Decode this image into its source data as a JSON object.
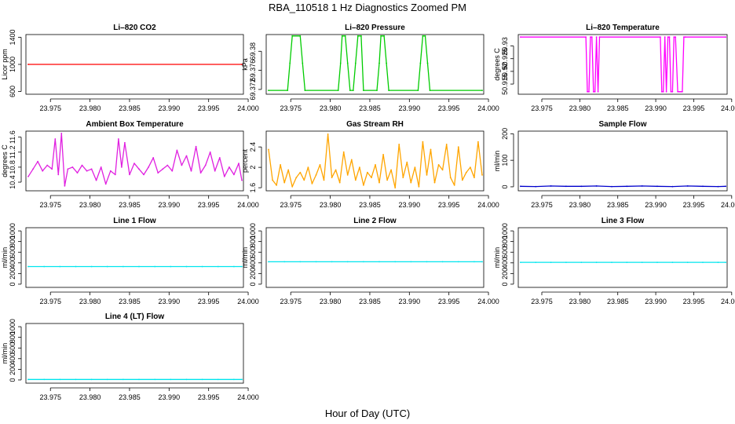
{
  "figure": {
    "title": "RBA_110518  1 Hz Diagnostics Zoomed PM",
    "xlabel": "Hour of Day (UTC)"
  },
  "chart_data": [
    {
      "id": "co2",
      "type": "line",
      "title": "Li–820 CO2",
      "ylabel": "Licor ppm",
      "color": "#ff0000",
      "xlim": [
        23.9719,
        23.9994
      ],
      "ylim": [
        560,
        1440
      ],
      "yticks": [
        600,
        1000,
        1400
      ],
      "xticks": [
        23.975,
        23.98,
        23.985,
        23.99,
        23.995,
        24.0
      ],
      "xtick_labels": [
        "23.975",
        "23.980",
        "23.985",
        "23.990",
        "23.995",
        "24.000"
      ],
      "x": [
        23.9722,
        23.9992
      ],
      "y": [
        1000,
        1000
      ]
    },
    {
      "id": "pressure",
      "type": "line",
      "title": "Li–820 Pressure",
      "ylabel": "kPa",
      "color": "#00cc00",
      "xlim": [
        23.9719,
        23.9994
      ],
      "ylim": [
        69.371,
        69.3835
      ],
      "yticks": [
        69.372,
        69.376,
        69.38
      ],
      "xticks": [
        23.975,
        23.98,
        23.985,
        23.99,
        23.995,
        24.0
      ],
      "xtick_labels": [
        "23.975",
        "23.980",
        "23.985",
        "23.990",
        "23.995",
        "24.000"
      ],
      "x": [
        23.9722,
        23.9746,
        23.9749,
        23.9752,
        23.9762,
        23.9765,
        23.9768,
        23.981,
        23.9813,
        23.9815,
        23.9819,
        23.9822,
        23.9825,
        23.9829,
        23.9832,
        23.9835,
        23.9839,
        23.9842,
        23.9859,
        23.9862,
        23.9864,
        23.9868,
        23.9871,
        23.9874,
        23.9911,
        23.9914,
        23.9917,
        23.992,
        23.9923,
        23.9926,
        23.9992
      ],
      "y": [
        69.3718,
        69.3718,
        69.3775,
        69.3832,
        69.3832,
        69.3775,
        69.3718,
        69.3718,
        69.3775,
        69.3832,
        69.3832,
        69.3775,
        69.3718,
        69.3718,
        69.3775,
        69.3832,
        69.3832,
        69.3718,
        69.3718,
        69.3775,
        69.3832,
        69.3832,
        69.3775,
        69.3718,
        69.3718,
        69.3775,
        69.3832,
        69.3832,
        69.3775,
        69.3718,
        69.3718
      ]
    },
    {
      "id": "temperature",
      "type": "line",
      "title": "Li–820 Temperature",
      "ylabel": "degrees C",
      "color": "#ff00ff",
      "xlim": [
        23.9719,
        23.9994
      ],
      "ylim": [
        50.911,
        50.9345
      ],
      "yticks": [
        50.915,
        50.92,
        50.925,
        50.93
      ],
      "xticks": [
        23.975,
        23.98,
        23.985,
        23.99,
        23.995,
        24.0
      ],
      "xtick_labels": [
        "23.975",
        "23.980",
        "23.985",
        "23.990",
        "23.995",
        "24.000"
      ],
      "x": [
        23.9722,
        23.9808,
        23.981,
        23.9812,
        23.9814,
        23.9816,
        23.9818,
        23.982,
        23.9822,
        23.9824,
        23.9826,
        23.9906,
        23.9908,
        23.991,
        23.9912,
        23.9914,
        23.9916,
        23.9918,
        23.992,
        23.9922,
        23.9924,
        23.9926,
        23.9929,
        23.9931,
        23.9933,
        23.9935,
        23.9937,
        23.9939,
        23.9992
      ],
      "y": [
        50.9335,
        50.9335,
        50.912,
        50.912,
        50.9335,
        50.9335,
        50.912,
        50.912,
        50.9335,
        50.912,
        50.9335,
        50.9335,
        50.912,
        50.912,
        50.9335,
        50.912,
        50.9335,
        50.9335,
        50.912,
        50.912,
        50.9335,
        50.9335,
        50.912,
        50.912,
        50.912,
        50.912,
        50.9335,
        50.9335,
        50.9335
      ]
    },
    {
      "id": "ambient",
      "type": "line",
      "title": "Ambient Box Temperature",
      "ylabel": "degrees C",
      "color": "#e020e0",
      "xlim": [
        23.9719,
        23.9994
      ],
      "ylim": [
        10.17,
        11.76
      ],
      "yticks": [
        10.4,
        10.8,
        11.2,
        11.6
      ],
      "xticks": [
        23.975,
        23.98,
        23.985,
        23.99,
        23.995,
        24.0
      ],
      "xtick_labels": [
        "23.975",
        "23.980",
        "23.985",
        "23.990",
        "23.995",
        "24.000"
      ],
      "x": [
        23.9722,
        23.9728,
        23.9734,
        23.974,
        23.9746,
        23.9752,
        23.9756,
        23.976,
        23.9764,
        23.9768,
        23.9772,
        23.9778,
        23.9784,
        23.979,
        23.9796,
        23.9802,
        23.9808,
        23.9814,
        23.982,
        23.9826,
        23.9832,
        23.9836,
        23.984,
        23.9844,
        23.985,
        23.9856,
        23.9862,
        23.9868,
        23.9874,
        23.988,
        23.9886,
        23.9892,
        23.9898,
        23.9904,
        23.991,
        23.9916,
        23.9922,
        23.9928,
        23.9934,
        23.994,
        23.9946,
        23.9952,
        23.9958,
        23.9964,
        23.997,
        23.9976,
        23.9982,
        23.9988,
        23.9992
      ],
      "y": [
        10.55,
        10.75,
        10.95,
        10.7,
        10.85,
        10.75,
        11.55,
        10.6,
        11.7,
        10.3,
        10.75,
        10.8,
        10.65,
        10.85,
        10.7,
        10.75,
        10.45,
        10.8,
        10.35,
        10.7,
        10.6,
        11.55,
        10.8,
        11.45,
        10.6,
        10.9,
        10.75,
        10.6,
        10.8,
        11.05,
        10.65,
        10.75,
        10.85,
        10.7,
        11.25,
        10.85,
        11.1,
        10.7,
        11.35,
        10.65,
        10.85,
        11.2,
        10.7,
        11.05,
        10.55,
        10.8,
        10.6,
        10.9,
        10.45
      ]
    },
    {
      "id": "rh",
      "type": "line",
      "title": "Gas Stream RH",
      "ylabel": "percent",
      "color": "#ffa500",
      "xlim": [
        23.9719,
        23.9994
      ],
      "ylim": [
        1.54,
        2.71
      ],
      "yticks": [
        1.6,
        2.0,
        2.4
      ],
      "xticks": [
        23.975,
        23.98,
        23.985,
        23.99,
        23.995,
        24.0
      ],
      "xtick_labels": [
        "23.975",
        "23.980",
        "23.985",
        "23.990",
        "23.995",
        "24.000"
      ],
      "x": [
        23.9722,
        23.9727,
        23.9732,
        23.9737,
        23.9742,
        23.9747,
        23.9752,
        23.9757,
        23.9762,
        23.9767,
        23.9772,
        23.9777,
        23.9782,
        23.9787,
        23.9792,
        23.9797,
        23.9802,
        23.9807,
        23.9812,
        23.9817,
        23.9822,
        23.9827,
        23.9832,
        23.9837,
        23.9842,
        23.9847,
        23.9852,
        23.9857,
        23.9862,
        23.9867,
        23.9872,
        23.9877,
        23.9882,
        23.9887,
        23.9892,
        23.9897,
        23.9902,
        23.9907,
        23.9912,
        23.9917,
        23.9922,
        23.9927,
        23.9932,
        23.9937,
        23.9942,
        23.9947,
        23.9952,
        23.9957,
        23.9962,
        23.9967,
        23.9972,
        23.9977,
        23.9982,
        23.9987,
        23.9992
      ],
      "y": [
        2.35,
        1.75,
        1.65,
        2.05,
        1.7,
        1.95,
        1.62,
        1.8,
        1.9,
        1.75,
        2.0,
        1.68,
        1.85,
        2.05,
        1.75,
        2.65,
        1.8,
        1.95,
        1.7,
        2.3,
        1.85,
        2.15,
        1.75,
        2.0,
        1.65,
        1.9,
        1.8,
        2.05,
        1.7,
        2.25,
        1.75,
        1.95,
        1.6,
        2.45,
        1.8,
        2.1,
        1.7,
        2.0,
        1.62,
        2.5,
        1.85,
        2.35,
        1.7,
        2.05,
        1.95,
        2.45,
        1.8,
        1.65,
        2.4,
        1.75,
        1.9,
        2.0,
        1.8,
        2.5,
        1.85
      ]
    },
    {
      "id": "sample",
      "type": "line",
      "title": "Sample Flow",
      "ylabel": "ml/min",
      "color": "#0000cc",
      "xlim": [
        23.9719,
        23.9994
      ],
      "ylim": [
        -15,
        210
      ],
      "yticks": [
        0,
        100,
        200
      ],
      "xticks": [
        23.975,
        23.98,
        23.985,
        23.99,
        23.995,
        24.0
      ],
      "xtick_labels": [
        "23.975",
        "23.980",
        "23.985",
        "23.990",
        "23.995",
        "24.000"
      ],
      "x": [
        23.9722,
        23.9742,
        23.9762,
        23.9782,
        23.9802,
        23.9822,
        23.9842,
        23.9862,
        23.9882,
        23.9902,
        23.9922,
        23.9942,
        23.9962,
        23.9982,
        23.9992
      ],
      "y": [
        2,
        1,
        3,
        2,
        2,
        3,
        1,
        2,
        3,
        2,
        1,
        3,
        2,
        1,
        2
      ]
    },
    {
      "id": "line1",
      "type": "line",
      "title": "Line 1 Flow",
      "ylabel": "ml/min",
      "color": "#00e5ee",
      "xlim": [
        23.9719,
        23.9994
      ],
      "ylim": [
        -60,
        1060
      ],
      "yticks": [
        0,
        200,
        400,
        600,
        800,
        1000
      ],
      "xticks": [
        23.975,
        23.98,
        23.985,
        23.99,
        23.995,
        24.0
      ],
      "xtick_labels": [
        "23.975",
        "23.980",
        "23.985",
        "23.990",
        "23.995",
        "24.000"
      ],
      "x": [
        23.9722,
        23.9742,
        23.9762,
        23.9782,
        23.9802,
        23.9822,
        23.9842,
        23.9862,
        23.9882,
        23.9902,
        23.9922,
        23.9942,
        23.9962,
        23.9982,
        23.9992
      ],
      "y": [
        330,
        330,
        330,
        330,
        330,
        330,
        330,
        330,
        330,
        330,
        330,
        330,
        330,
        330,
        330
      ]
    },
    {
      "id": "line2",
      "type": "line",
      "title": "Line 2 Flow",
      "ylabel": "ml/min",
      "color": "#00e5ee",
      "xlim": [
        23.9719,
        23.9994
      ],
      "ylim": [
        -60,
        1060
      ],
      "yticks": [
        0,
        200,
        400,
        600,
        800,
        1000
      ],
      "xticks": [
        23.975,
        23.98,
        23.985,
        23.99,
        23.995,
        24.0
      ],
      "xtick_labels": [
        "23.975",
        "23.980",
        "23.985",
        "23.990",
        "23.995",
        "24.000"
      ],
      "x": [
        23.9722,
        23.9742,
        23.9762,
        23.9782,
        23.9802,
        23.9822,
        23.9842,
        23.9862,
        23.9882,
        23.9902,
        23.9922,
        23.9942,
        23.9962,
        23.9982,
        23.9992
      ],
      "y": [
        420,
        420,
        420,
        420,
        420,
        420,
        420,
        420,
        420,
        420,
        420,
        420,
        420,
        420,
        420
      ]
    },
    {
      "id": "line3",
      "type": "line",
      "title": "Line 3 Flow",
      "ylabel": "ml/min",
      "color": "#00e5ee",
      "xlim": [
        23.9719,
        23.9994
      ],
      "ylim": [
        -60,
        1060
      ],
      "yticks": [
        0,
        200,
        400,
        600,
        800,
        1000
      ],
      "xticks": [
        23.975,
        23.98,
        23.985,
        23.99,
        23.995,
        24.0
      ],
      "xtick_labels": [
        "23.975",
        "23.980",
        "23.985",
        "23.990",
        "23.995",
        "24.000"
      ],
      "x": [
        23.9722,
        23.9742,
        23.9762,
        23.9782,
        23.9802,
        23.9822,
        23.9842,
        23.9862,
        23.9882,
        23.9902,
        23.9922,
        23.9942,
        23.9962,
        23.9982,
        23.9992
      ],
      "y": [
        410,
        410,
        410,
        410,
        410,
        410,
        410,
        410,
        410,
        410,
        410,
        410,
        410,
        410,
        410
      ]
    },
    {
      "id": "line4",
      "type": "line",
      "title": "Line 4 (LT) Flow",
      "ylabel": "ml/min",
      "color": "#00e5ee",
      "xlim": [
        23.9719,
        23.9994
      ],
      "ylim": [
        -60,
        1060
      ],
      "yticks": [
        0,
        200,
        400,
        600,
        800,
        1000
      ],
      "xticks": [
        23.975,
        23.98,
        23.985,
        23.99,
        23.995,
        24.0
      ],
      "xtick_labels": [
        "23.975",
        "23.980",
        "23.985",
        "23.990",
        "23.995",
        "24.000"
      ],
      "x": [
        23.9722,
        23.9742,
        23.9762,
        23.9782,
        23.9802,
        23.9822,
        23.9842,
        23.9862,
        23.9882,
        23.9902,
        23.9922,
        23.9942,
        23.9962,
        23.9982,
        23.9992
      ],
      "y": [
        10,
        10,
        10,
        10,
        10,
        10,
        10,
        10,
        10,
        10,
        10,
        10,
        10,
        10,
        10
      ]
    }
  ]
}
